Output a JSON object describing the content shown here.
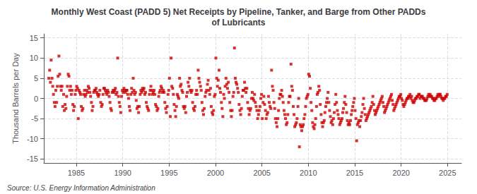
{
  "chart_data": {
    "type": "scatter",
    "title": "Monthly West Coast (PADD 5) Net Receipts by Pipeline, Tanker, and Barge from Other PADDs\nof Lubricants",
    "y_label": "Thousand Barrels per Day",
    "annotations": [
      "Source: U.S. Energy Information Administration"
    ],
    "color": "#CC0000",
    "marker": "square",
    "grid": true,
    "xlim": [
      1981.5,
      2026.5
    ],
    "ylim": [
      -16,
      16
    ],
    "xticks": [
      1985,
      1990,
      1995,
      2000,
      2005,
      2010,
      2015,
      2020,
      2025
    ],
    "yticks": [
      -15,
      -10,
      -5,
      0,
      5,
      10,
      15
    ],
    "x": [
      1982.04,
      1982.13,
      1982.21,
      1982.29,
      1982.38,
      1982.46,
      1982.54,
      1982.63,
      1982.71,
      1982.79,
      1982.88,
      1982.96,
      1983.04,
      1983.13,
      1983.21,
      1983.29,
      1983.38,
      1983.46,
      1983.54,
      1983.63,
      1983.71,
      1983.79,
      1983.88,
      1983.96,
      1984.04,
      1984.13,
      1984.21,
      1984.29,
      1984.38,
      1984.46,
      1984.54,
      1984.63,
      1984.71,
      1984.79,
      1984.88,
      1984.96,
      1985.04,
      1985.13,
      1985.21,
      1985.29,
      1985.38,
      1985.46,
      1985.54,
      1985.63,
      1985.71,
      1985.79,
      1985.88,
      1985.96,
      1986.04,
      1986.13,
      1986.21,
      1986.29,
      1986.38,
      1986.46,
      1986.54,
      1986.63,
      1986.71,
      1986.79,
      1986.88,
      1986.96,
      1987.04,
      1987.13,
      1987.21,
      1987.29,
      1987.38,
      1987.46,
      1987.54,
      1987.63,
      1987.71,
      1987.79,
      1987.88,
      1987.96,
      1988.04,
      1988.13,
      1988.21,
      1988.29,
      1988.38,
      1988.46,
      1988.54,
      1988.63,
      1988.71,
      1988.79,
      1988.88,
      1988.96,
      1989.04,
      1989.13,
      1989.21,
      1989.29,
      1989.38,
      1989.46,
      1989.54,
      1989.63,
      1989.71,
      1989.79,
      1989.88,
      1989.96,
      1990.04,
      1990.13,
      1990.21,
      1990.29,
      1990.38,
      1990.46,
      1990.54,
      1990.63,
      1990.71,
      1990.79,
      1990.88,
      1990.96,
      1991.04,
      1991.13,
      1991.21,
      1991.29,
      1991.38,
      1991.46,
      1991.54,
      1991.63,
      1991.71,
      1991.79,
      1991.88,
      1991.96,
      1992.04,
      1992.13,
      1992.21,
      1992.29,
      1992.38,
      1992.46,
      1992.54,
      1992.63,
      1992.71,
      1992.79,
      1992.88,
      1992.96,
      1993.04,
      1993.13,
      1993.21,
      1993.29,
      1993.38,
      1993.46,
      1993.54,
      1993.63,
      1993.71,
      1993.79,
      1993.88,
      1993.96,
      1994.04,
      1994.13,
      1994.21,
      1994.29,
      1994.38,
      1994.46,
      1994.54,
      1994.63,
      1994.71,
      1994.79,
      1994.88,
      1994.96,
      1995.04,
      1995.13,
      1995.21,
      1995.29,
      1995.38,
      1995.46,
      1995.54,
      1995.63,
      1995.71,
      1995.79,
      1995.88,
      1995.96,
      1996.04,
      1996.13,
      1996.21,
      1996.29,
      1996.38,
      1996.46,
      1996.54,
      1996.63,
      1996.71,
      1996.79,
      1996.88,
      1996.96,
      1997.04,
      1997.13,
      1997.21,
      1997.29,
      1997.38,
      1997.46,
      1997.54,
      1997.63,
      1997.71,
      1997.79,
      1997.88,
      1997.96,
      1998.04,
      1998.13,
      1998.21,
      1998.29,
      1998.38,
      1998.46,
      1998.54,
      1998.63,
      1998.71,
      1998.79,
      1998.88,
      1998.96,
      1999.04,
      1999.13,
      1999.21,
      1999.29,
      1999.38,
      1999.46,
      1999.54,
      1999.63,
      1999.71,
      1999.79,
      1999.88,
      1999.96,
      2000.04,
      2000.13,
      2000.21,
      2000.29,
      2000.38,
      2000.46,
      2000.54,
      2000.63,
      2000.71,
      2000.79,
      2000.88,
      2000.96,
      2001.04,
      2001.13,
      2001.21,
      2001.29,
      2001.38,
      2001.46,
      2001.54,
      2001.63,
      2001.71,
      2001.79,
      2001.88,
      2001.96,
      2002.04,
      2002.13,
      2002.21,
      2002.29,
      2002.38,
      2002.46,
      2002.54,
      2002.63,
      2002.71,
      2002.79,
      2002.88,
      2002.96,
      2003.04,
      2003.13,
      2003.21,
      2003.29,
      2003.38,
      2003.46,
      2003.54,
      2003.63,
      2003.71,
      2003.79,
      2003.88,
      2003.96,
      2004.04,
      2004.13,
      2004.21,
      2004.29,
      2004.38,
      2004.46,
      2004.54,
      2004.63,
      2004.71,
      2004.79,
      2004.88,
      2004.96,
      2005.04,
      2005.13,
      2005.21,
      2005.29,
      2005.38,
      2005.46,
      2005.54,
      2005.63,
      2005.71,
      2005.79,
      2005.88,
      2005.96,
      2006.04,
      2006.13,
      2006.21,
      2006.29,
      2006.38,
      2006.46,
      2006.54,
      2006.63,
      2006.71,
      2006.79,
      2006.88,
      2006.96,
      2007.04,
      2007.13,
      2007.21,
      2007.29,
      2007.38,
      2007.46,
      2007.54,
      2007.63,
      2007.71,
      2007.79,
      2007.88,
      2007.96,
      2008.04,
      2008.13,
      2008.21,
      2008.29,
      2008.38,
      2008.46,
      2008.54,
      2008.63,
      2008.71,
      2008.79,
      2008.88,
      2008.96,
      2009.04,
      2009.13,
      2009.21,
      2009.29,
      2009.38,
      2009.46,
      2009.54,
      2009.63,
      2009.71,
      2009.79,
      2009.88,
      2009.96,
      2010.04,
      2010.13,
      2010.21,
      2010.29,
      2010.38,
      2010.46,
      2010.54,
      2010.63,
      2010.71,
      2010.79,
      2010.88,
      2010.96,
      2011.04,
      2011.13,
      2011.21,
      2011.29,
      2011.38,
      2011.46,
      2011.54,
      2011.63,
      2011.71,
      2011.79,
      2011.88,
      2011.96,
      2012.04,
      2012.13,
      2012.21,
      2012.29,
      2012.38,
      2012.46,
      2012.54,
      2012.63,
      2012.71,
      2012.79,
      2012.88,
      2012.96,
      2013.04,
      2013.13,
      2013.21,
      2013.29,
      2013.38,
      2013.46,
      2013.54,
      2013.63,
      2013.71,
      2013.79,
      2013.88,
      2013.96,
      2014.04,
      2014.13,
      2014.21,
      2014.29,
      2014.38,
      2014.46,
      2014.54,
      2014.63,
      2014.71,
      2014.79,
      2014.88,
      2014.96,
      2015.04,
      2015.13,
      2015.21,
      2015.29,
      2015.38,
      2015.46,
      2015.54,
      2015.63,
      2015.71,
      2015.79,
      2015.88,
      2015.96,
      2016.04,
      2016.13,
      2016.21,
      2016.29,
      2016.38,
      2016.46,
      2016.54,
      2016.63,
      2016.71,
      2016.79,
      2016.88,
      2016.96,
      2017.04,
      2017.13,
      2017.21,
      2017.29,
      2017.38,
      2017.46,
      2017.54,
      2017.63,
      2017.71,
      2017.79,
      2017.88,
      2017.96,
      2018.04,
      2018.13,
      2018.21,
      2018.29,
      2018.38,
      2018.46,
      2018.54,
      2018.63,
      2018.71,
      2018.79,
      2018.88,
      2018.96,
      2019.04,
      2019.13,
      2019.21,
      2019.29,
      2019.38,
      2019.46,
      2019.54,
      2019.63,
      2019.71,
      2019.79,
      2019.88,
      2019.96,
      2020.04,
      2020.13,
      2020.21,
      2020.29,
      2020.38,
      2020.46,
      2020.54,
      2020.63,
      2020.71,
      2020.79,
      2020.88,
      2020.96,
      2021.04,
      2021.13,
      2021.21,
      2021.29,
      2021.38,
      2021.46,
      2021.54,
      2021.63,
      2021.71,
      2021.79,
      2021.88,
      2021.96,
      2022.04,
      2022.13,
      2022.21,
      2022.29,
      2022.38,
      2022.46,
      2022.54,
      2022.63,
      2022.71,
      2022.79,
      2022.88,
      2022.96,
      2023.04,
      2023.13,
      2023.21,
      2023.29,
      2023.38,
      2023.46,
      2023.54,
      2023.63,
      2023.71,
      2023.79,
      2023.88,
      2023.96,
      2024.04,
      2024.13,
      2024.21,
      2024.29,
      2024.38,
      2024.46,
      2024.54,
      2024.63,
      2024.71,
      2024.79,
      2024.88,
      2024.96
    ],
    "values": [
      5.0,
      7.0,
      4.0,
      9.5,
      5.0,
      3.0,
      1.0,
      -1.0,
      -2.0,
      2.0,
      -1.0,
      3.0,
      5.5,
      10.5,
      6.0,
      3.0,
      2.0,
      3.0,
      -2.0,
      1.0,
      -3.0,
      -1.5,
      -2.5,
      0.5,
      3.0,
      6.0,
      5.5,
      2.0,
      3.0,
      1.0,
      2.0,
      -1.5,
      -3.0,
      -2.0,
      1.0,
      2.0,
      3.0,
      2.5,
      -5.0,
      2.0,
      1.5,
      1.0,
      -2.0,
      -3.0,
      -2.5,
      1.0,
      2.0,
      0.5,
      1.0,
      2.0,
      1.5,
      3.0,
      2.5,
      1.5,
      0.5,
      -1.0,
      -3.0,
      -2.0,
      1.5,
      2.0,
      2.0,
      2.5,
      1.5,
      1.0,
      0.5,
      1.0,
      2.0,
      -1.0,
      -2.0,
      -1.5,
      1.0,
      2.5,
      2.5,
      2.0,
      1.5,
      1.0,
      2.0,
      1.5,
      0.5,
      -1.0,
      -2.5,
      -3.0,
      1.5,
      2.0,
      1.5,
      2.0,
      2.5,
      1.0,
      1.5,
      10.0,
      0.5,
      -1.0,
      -2.0,
      -3.5,
      0.5,
      2.0,
      1.5,
      2.5,
      2.0,
      1.5,
      2.0,
      2.0,
      1.0,
      0.0,
      -2.0,
      -3.0,
      1.0,
      2.5,
      1.5,
      5.0,
      2.0,
      1.0,
      1.5,
      -0.5,
      -2.5,
      -2.0,
      -3.5,
      -2.0,
      1.0,
      2.0,
      1.5,
      2.5,
      2.0,
      2.5,
      1.0,
      1.5,
      -1.0,
      -2.0,
      -2.5,
      -3.0,
      1.0,
      2.0,
      3.0,
      2.0,
      1.0,
      1.5,
      2.0,
      1.0,
      -1.5,
      -2.0,
      -3.0,
      -2.5,
      0.5,
      1.5,
      2.0,
      3.0,
      2.5,
      1.5,
      2.0,
      1.5,
      -1.0,
      -2.5,
      -3.5,
      -2.0,
      1.0,
      2.0,
      5.0,
      -4.5,
      10.0,
      3.0,
      2.5,
      1.0,
      -1.5,
      -3.0,
      -4.5,
      -2.0,
      1.0,
      0.5,
      0.0,
      5.0,
      3.0,
      3.5,
      2.0,
      1.5,
      -2.0,
      -2.5,
      -2.0,
      -3.5,
      0.5,
      1.5,
      4.0,
      3.0,
      5.0,
      2.0,
      1.5,
      2.0,
      -1.0,
      -2.5,
      -3.0,
      -2.0,
      1.0,
      2.0,
      1.0,
      7.0,
      5.0,
      4.0,
      3.0,
      2.0,
      -1.0,
      -3.0,
      -4.0,
      -2.5,
      0.5,
      1.5,
      2.0,
      3.5,
      4.5,
      2.0,
      1.0,
      2.5,
      -2.0,
      -3.5,
      -4.0,
      -3.0,
      0.5,
      1.0,
      10.0,
      5.0,
      3.0,
      4.5,
      7.0,
      2.5,
      1.5,
      -1.0,
      -2.5,
      -4.5,
      1.0,
      0.0,
      3.0,
      5.0,
      3.5,
      2.5,
      4.0,
      1.5,
      -1.0,
      -3.0,
      -4.5,
      -3.0,
      0.5,
      1.5,
      12.5,
      5.0,
      4.0,
      3.5,
      2.5,
      1.5,
      -1.5,
      -3.0,
      -4.0,
      -2.5,
      0.5,
      2.0,
      2.0,
      4.0,
      2.5,
      1.5,
      2.5,
      -1.0,
      -2.5,
      -4.0,
      -3.0,
      -2.5,
      0.0,
      1.5,
      0.0,
      -0.5,
      1.0,
      -1.0,
      -2.0,
      -3.0,
      -5.0,
      -4.0,
      -3.0,
      -2.0,
      0.0,
      1.0,
      -5.0,
      -1.0,
      0.5,
      -1.5,
      -3.0,
      -5.0,
      -4.0,
      -3.5,
      0.5,
      -1.0,
      -2.0,
      -2.5,
      7.0,
      3.0,
      2.0,
      -1.0,
      -2.5,
      -5.0,
      -6.0,
      -7.0,
      -5.0,
      -3.0,
      0.0,
      1.0,
      1.0,
      2.0,
      0.5,
      -1.0,
      -3.0,
      -4.0,
      -5.0,
      -6.5,
      -6.0,
      -4.0,
      -1.0,
      0.5,
      0.5,
      8.5,
      3.0,
      2.0,
      -2.0,
      -4.0,
      -7.0,
      -6.5,
      -6.0,
      -5.0,
      -2.0,
      0.0,
      -12.0,
      -6.5,
      -7.0,
      -8.0,
      -7.0,
      -6.5,
      -5.0,
      -4.0,
      -2.0,
      0.0,
      0.5,
      1.0,
      6.0,
      5.5,
      2.5,
      -1.0,
      -3.0,
      -6.0,
      -7.0,
      -7.5,
      -6.5,
      -5.0,
      -2.0,
      1.0,
      1.5,
      3.0,
      2.0,
      -1.5,
      -4.0,
      -6.0,
      -7.0,
      -6.0,
      -5.5,
      -3.5,
      -2.0,
      -1.0,
      0.0,
      1.5,
      -1.0,
      -3.0,
      -4.5,
      -6.0,
      -5.5,
      -6.5,
      -5.0,
      -3.5,
      -1.5,
      1.0,
      -1.0,
      -3.0,
      -4.0,
      -5.0,
      -6.5,
      -6.0,
      -5.5,
      -5.0,
      -3.5,
      -2.5,
      -1.0,
      0.5,
      -1.5,
      -3.5,
      -5.5,
      -6.5,
      -6.0,
      -6.5,
      -5.5,
      -4.0,
      -3.0,
      -2.0,
      -1.0,
      0.0,
      -3.0,
      -5.0,
      -10.5,
      -6.5,
      -6.0,
      -5.5,
      -7.0,
      -5.5,
      -4.5,
      -3.5,
      -1.5,
      0.0,
      -2.5,
      -4.0,
      -5.5,
      -5.0,
      -4.5,
      -4.0,
      -3.5,
      -3.0,
      -2.5,
      -2.0,
      -1.0,
      0.5,
      -1.5,
      -3.0,
      -4.0,
      -3.5,
      -3.0,
      -2.5,
      -2.0,
      -1.5,
      -1.0,
      -0.5,
      0.0,
      0.5,
      -1.0,
      -2.0,
      -3.5,
      -3.0,
      -2.5,
      -2.0,
      -1.5,
      -1.0,
      -0.5,
      0.0,
      0.5,
      1.0,
      -0.5,
      -1.5,
      -3.0,
      -2.5,
      -2.0,
      -1.5,
      -1.0,
      -0.5,
      0.0,
      0.5,
      0.5,
      1.0,
      0.0,
      -0.5,
      -1.5,
      -2.0,
      -1.5,
      -1.0,
      -0.5,
      0.0,
      0.0,
      0.5,
      0.5,
      1.0,
      0.0,
      0.5,
      -0.5,
      -1.0,
      -1.0,
      -0.5,
      0.0,
      0.0,
      0.5,
      0.5,
      1.0,
      1.0,
      0.0,
      0.5,
      0.5,
      0.5,
      0.0,
      0.0,
      -0.5,
      -0.5,
      -0.5,
      0.0,
      0.5,
      1.0,
      0.5,
      1.0,
      0.5,
      0.5,
      0.0,
      0.0,
      -0.5,
      -0.5,
      0.0,
      0.0,
      0.5,
      1.0,
      0.5,
      1.0,
      1.0,
      0.5,
      0.0,
      0.0,
      -0.5,
      0.0,
      0.0,
      0.5,
      0.5,
      1.0
    ]
  }
}
